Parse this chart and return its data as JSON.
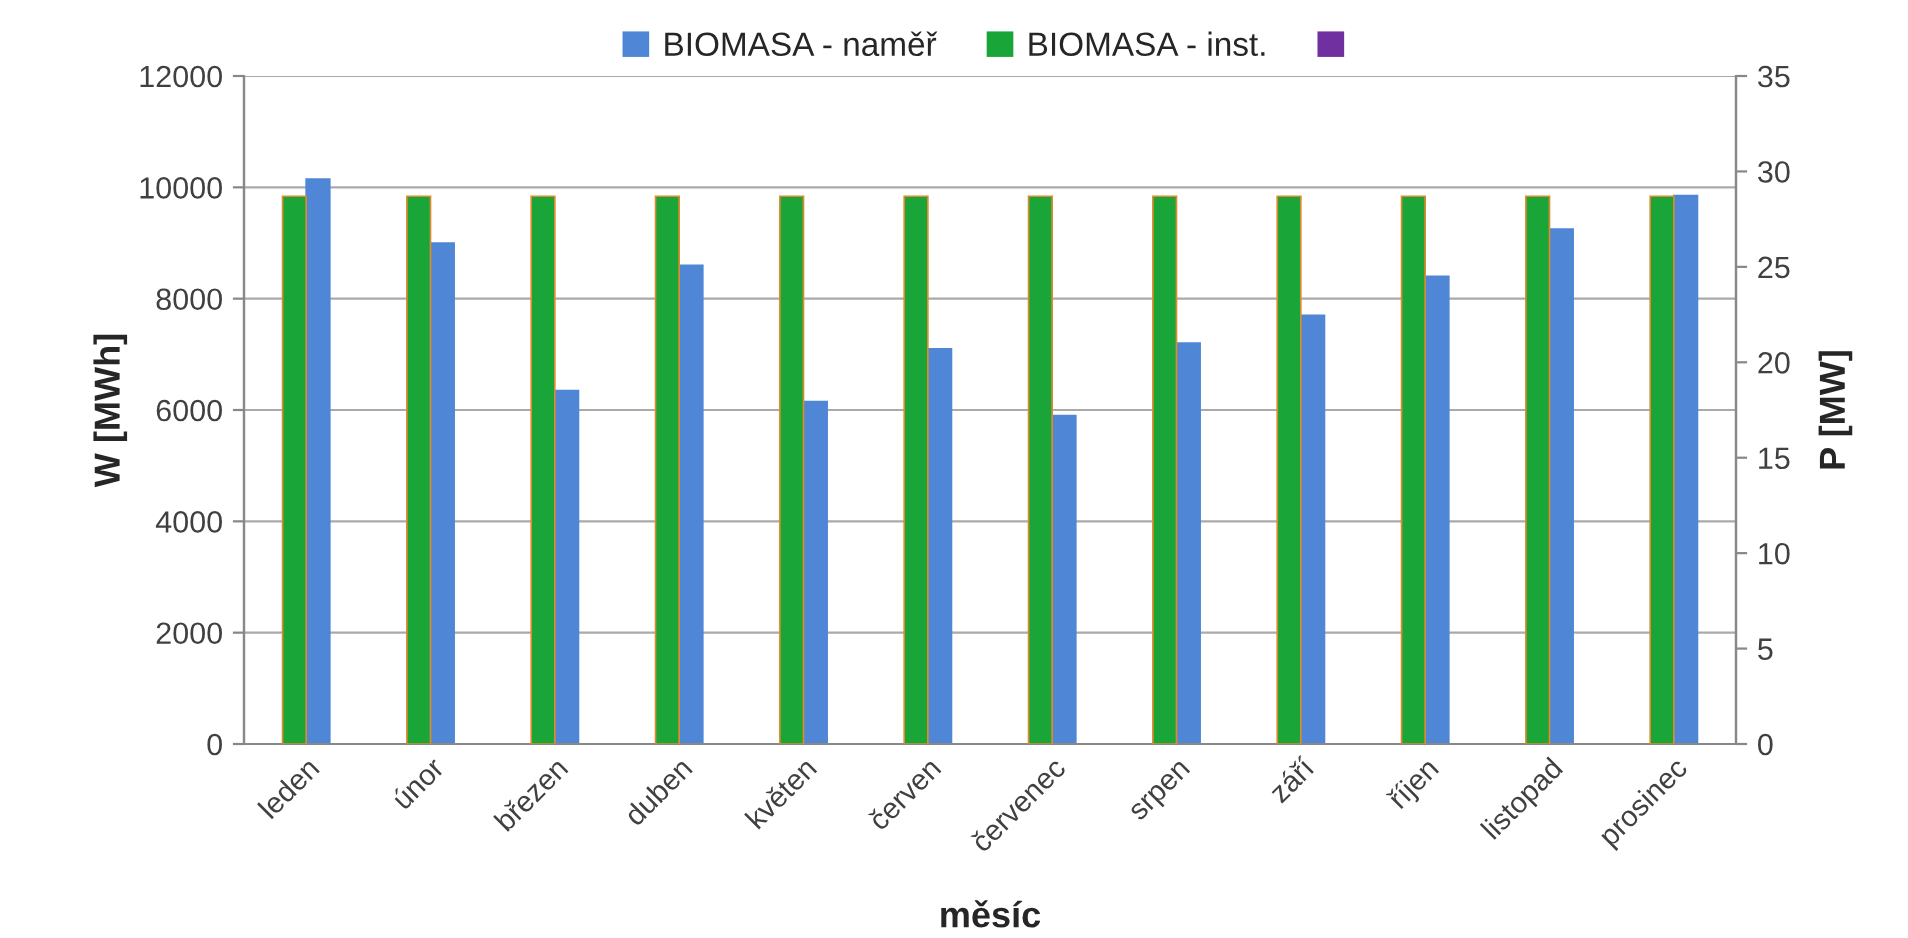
{
  "chart_data": {
    "type": "bar",
    "xlabel": "měsíc",
    "ylabel": "W [MWh]",
    "y2label": "P [MW]",
    "categories": [
      "leden",
      "únor",
      "březen",
      "duben",
      "květen",
      "červen",
      "červenec",
      "srpen",
      "září",
      "říjen",
      "listopad",
      "prosinec"
    ],
    "series": [
      {
        "name": "BIOMASA - naměř",
        "color": "#4f86d6",
        "values": [
          10150,
          9000,
          6350,
          8600,
          6150,
          7100,
          5900,
          7200,
          7700,
          8400,
          9250,
          9850
        ]
      },
      {
        "name": "BIOMASA - inst.",
        "color": "#1aa538",
        "axis": "y2",
        "values": [
          28.7,
          28.7,
          28.7,
          28.7,
          28.7,
          28.7,
          28.7,
          28.7,
          28.7,
          28.7,
          28.7,
          28.7
        ]
      },
      {
        "color": "#7030a0",
        "values": [
          null,
          null,
          null,
          null,
          null,
          null,
          null,
          null,
          null,
          null,
          null,
          null
        ]
      }
    ],
    "ylim": [
      0,
      12000
    ],
    "yticks": [
      0,
      2000,
      4000,
      6000,
      8000,
      10000,
      12000
    ],
    "y2lim": [
      0,
      35
    ],
    "y2ticks": [
      0,
      5,
      10,
      15,
      20,
      25,
      30,
      35
    ],
    "grid": "y",
    "legend": "top"
  }
}
